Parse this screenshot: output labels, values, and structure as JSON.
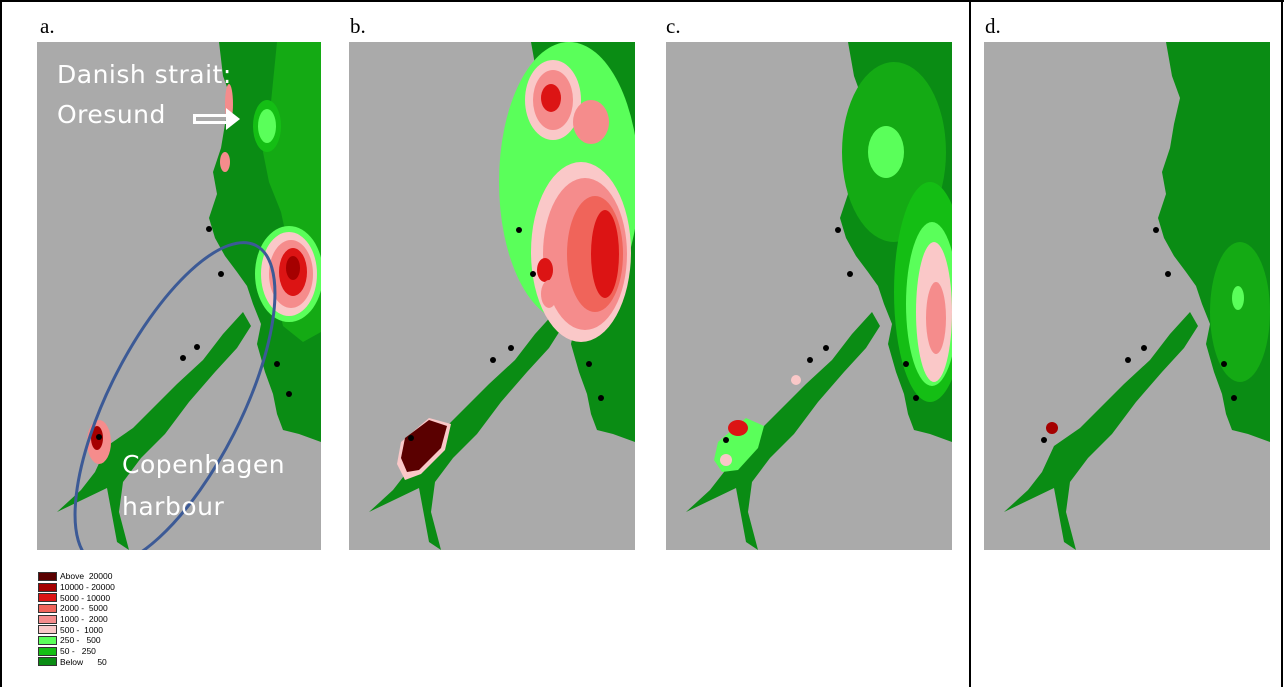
{
  "panels": [
    {
      "label": "a."
    },
    {
      "label": "b."
    },
    {
      "label": "c."
    },
    {
      "label": "d."
    }
  ],
  "annotations": {
    "strait_line1": "Danish strait:",
    "strait_line2": "Oresund",
    "harbour_line1": "Copenhagen",
    "harbour_line2": "harbour"
  },
  "legend": [
    {
      "text": "Above  20000",
      "color": "#5a0000"
    },
    {
      "text": "10000 - 20000",
      "color": "#a50000"
    },
    {
      "text": "5000 - 10000",
      "color": "#dc1414"
    },
    {
      "text": "2000 -  5000",
      "color": "#f0645a"
    },
    {
      "text": "1000 -  2000",
      "color": "#f58c8c"
    },
    {
      "text": "500 -  1000",
      "color": "#fac8c8"
    },
    {
      "text": "250 -   500",
      "color": "#5aff5a"
    },
    {
      "text": "50 -   250",
      "color": "#14be14"
    },
    {
      "text": "Below      50",
      "color": "#0a8c14"
    }
  ],
  "colors": {
    "land": "#aaaaaa",
    "sea_dark": "#0a8c14",
    "sea_mid": "#14aa14",
    "sea_light": "#5aff5a",
    "ellipse": "#3c5a96",
    "station": "#000000"
  }
}
